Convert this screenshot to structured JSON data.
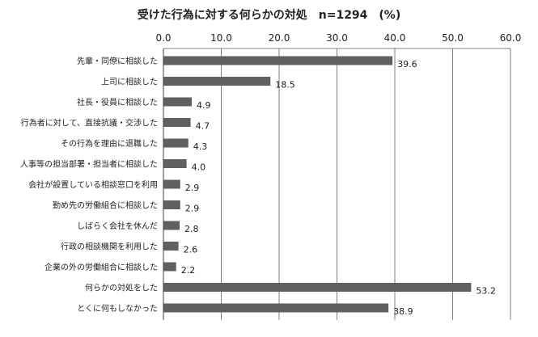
{
  "chart_data": {
    "type": "bar",
    "orientation": "horizontal",
    "title": "受けた行為に対する何らかの対処　n=1294　(%)",
    "categories": [
      "先輩・同僚に相談した",
      "上司に相談した",
      "社長・役員に相談した",
      "行為者に対して、直接抗議・交渉した",
      "その行為を理由に退職した",
      "人事等の担当部署・担当者に相談した",
      "会社が設置している相談窓口を利用",
      "勤め先の労働組合に相談した",
      "しばらく会社を休んだ",
      "行政の相談機関を利用した",
      "企業の外の労働組合に相談した",
      "何らかの対処をした",
      "とくに何もしなかった"
    ],
    "values": [
      39.6,
      18.5,
      4.9,
      4.7,
      4.3,
      4.0,
      2.9,
      2.9,
      2.8,
      2.6,
      2.2,
      53.2,
      38.9
    ],
    "value_labels": [
      "39.6",
      "18.5",
      "4.9",
      "4.7",
      "4.3",
      "4.0",
      "2.9",
      "2.9",
      "2.8",
      "2.6",
      "2.2",
      "53.2",
      "38.9"
    ],
    "xlim": [
      0,
      60
    ],
    "x_ticks": [
      "0.0",
      "10.0",
      "20.0",
      "30.0",
      "40.0",
      "50.0",
      "60.0"
    ],
    "x_axis_position": "top",
    "grid": true,
    "bar_color": "#606060",
    "grid_color": "#808080"
  }
}
